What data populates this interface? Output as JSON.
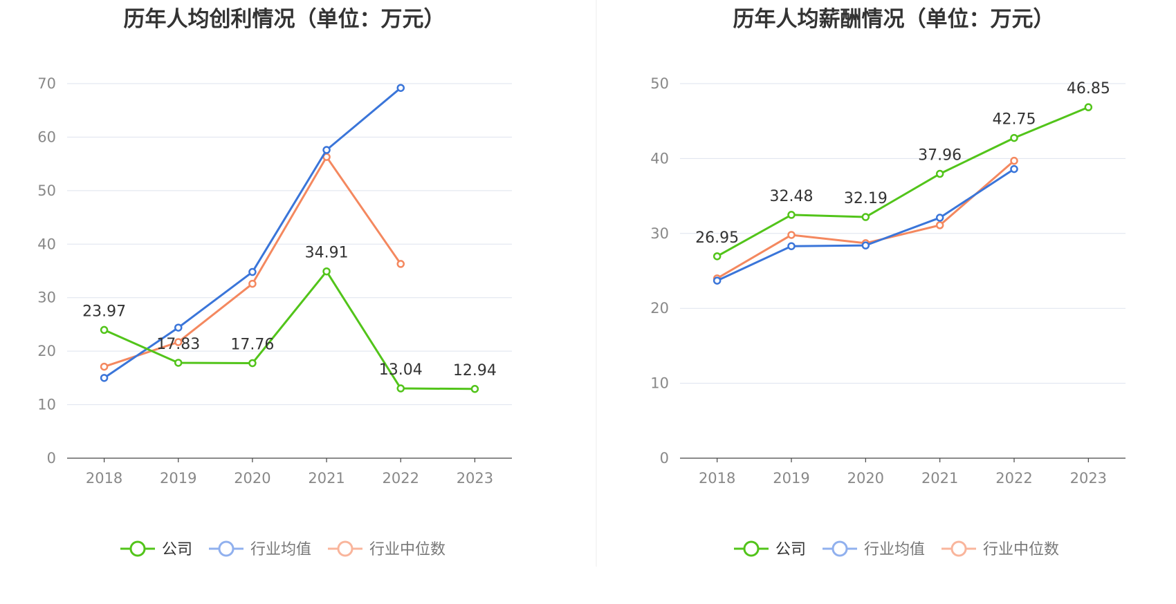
{
  "chart_data": [
    {
      "type": "line",
      "title": "历年人均创利情况（单位：万元）",
      "categories": [
        "2018",
        "2019",
        "2020",
        "2021",
        "2022",
        "2023"
      ],
      "y_ticks": [
        "0",
        "10",
        "20",
        "30",
        "40",
        "50",
        "60",
        "70"
      ],
      "ylim": [
        0,
        70
      ],
      "grid": true,
      "legend_position": "bottom",
      "series": [
        {
          "name": "公司",
          "color": "#52c41a",
          "values": [
            23.97,
            17.83,
            17.76,
            34.91,
            13.04,
            12.94
          ],
          "labels": [
            "23.97",
            "17.83",
            "17.76",
            "34.91",
            "13.04",
            "12.94"
          ],
          "show_labels": true
        },
        {
          "name": "行业均值",
          "color": "#3a75d9",
          "values": [
            15.0,
            24.4,
            34.8,
            57.6,
            69.2,
            null
          ],
          "show_labels": false
        },
        {
          "name": "行业中位数",
          "color": "#f4885f",
          "values": [
            17.1,
            21.7,
            32.6,
            56.3,
            36.3,
            null
          ],
          "show_labels": false
        }
      ]
    },
    {
      "type": "line",
      "title": "历年人均薪酬情况（单位：万元）",
      "categories": [
        "2018",
        "2019",
        "2020",
        "2021",
        "2022",
        "2023"
      ],
      "y_ticks": [
        "0",
        "10",
        "20",
        "30",
        "40",
        "50"
      ],
      "ylim": [
        0,
        50
      ],
      "grid": true,
      "legend_position": "bottom",
      "series": [
        {
          "name": "公司",
          "color": "#52c41a",
          "values": [
            26.95,
            32.48,
            32.19,
            37.96,
            42.75,
            46.85
          ],
          "labels": [
            "26.95",
            "32.48",
            "32.19",
            "37.96",
            "42.75",
            "46.85"
          ],
          "show_labels": true
        },
        {
          "name": "行业均值",
          "color": "#3a75d9",
          "values": [
            23.7,
            28.3,
            28.4,
            32.1,
            38.6,
            null
          ],
          "show_labels": false
        },
        {
          "name": "行业中位数",
          "color": "#f4885f",
          "values": [
            24.0,
            29.8,
            28.7,
            31.1,
            39.7,
            null
          ],
          "show_labels": false
        }
      ]
    }
  ],
  "legend_styles": {
    "active_text_color": "#333333",
    "inactive_text_color": "#777777",
    "inactive_colors": [
      "#52c41a",
      "#90b0ee",
      "#f9b59c"
    ]
  }
}
